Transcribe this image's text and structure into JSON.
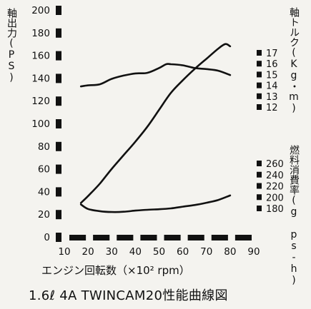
{
  "chart_data": {
    "type": "line",
    "title": "1.6ℓ 4A TWINCAM20性能曲線図",
    "xlabel": "エンジン回転数（×10² rpm）",
    "x_ticks": [
      "10",
      "20",
      "30",
      "40",
      "50",
      "60",
      "70",
      "80",
      "90"
    ],
    "xlim": [
      10,
      90
    ],
    "left_axis": {
      "label": "軸出力(PS)",
      "ticks": [
        "0",
        "20",
        "40",
        "60",
        "80",
        "100",
        "120",
        "140",
        "160",
        "180",
        "200"
      ],
      "ylim": [
        0,
        200
      ]
    },
    "torque_axis": {
      "label": "軸トルク(Kg・m)",
      "ticks": [
        "12",
        "13",
        "14",
        "15",
        "16",
        "17"
      ],
      "ylim": [
        12,
        17
      ]
    },
    "fuel_axis": {
      "label": "燃料消費率(g ps-h)",
      "ticks": [
        "180",
        "200",
        "220",
        "240",
        "260"
      ],
      "ylim": [
        180,
        260
      ]
    },
    "series": [
      {
        "name": "軸出力",
        "axis": "left",
        "x": [
          17,
          20,
          25,
          30,
          35,
          40,
          45,
          50,
          55,
          60,
          65,
          70,
          75,
          78,
          80
        ],
        "y": [
          30,
          36,
          47,
          60,
          72,
          84,
          97,
          112,
          127,
          138,
          148,
          157,
          166,
          170,
          168
        ]
      },
      {
        "name": "軸トルク",
        "axis": "torque",
        "x": [
          17,
          20,
          25,
          30,
          35,
          40,
          45,
          50,
          53,
          55,
          60,
          65,
          70,
          75,
          80
        ],
        "y": [
          13.9,
          14.0,
          14.1,
          14.6,
          14.9,
          15.1,
          15.15,
          15.6,
          15.95,
          15.95,
          15.85,
          15.6,
          15.5,
          15.35,
          14.95
        ]
      },
      {
        "name": "燃料消費率",
        "axis": "fuel",
        "x": [
          17,
          20,
          25,
          30,
          35,
          40,
          45,
          50,
          55,
          60,
          65,
          70,
          75,
          80
        ],
        "y": [
          187,
          179,
          175,
          173.5,
          174,
          176,
          177.5,
          178.5,
          180,
          183,
          186,
          190,
          195,
          203
        ]
      }
    ],
    "grid": false
  }
}
